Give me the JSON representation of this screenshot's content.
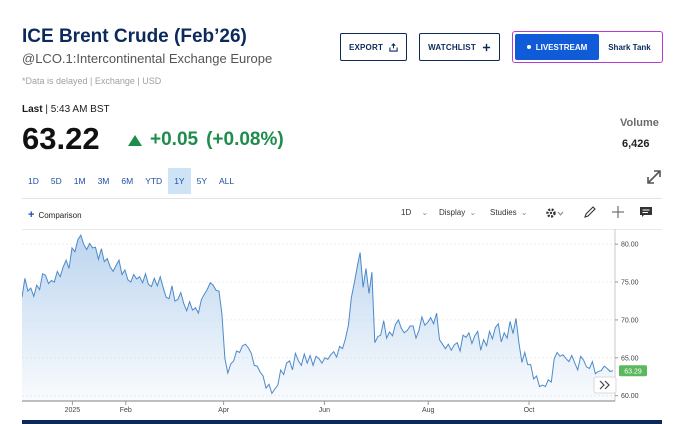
{
  "header": {
    "title": "ICE Brent Crude (Feb’26)",
    "symbol": "@LCO.1:Intercontinental Exchange Europe",
    "note": "*Data is delayed | Exchange | USD"
  },
  "actions": {
    "export_label": "EXPORT",
    "watchlist_label": "WATCHLIST",
    "livestream_label": "LIVESTREAM",
    "shark_label": "Shark Tank"
  },
  "quote": {
    "last_label": "Last",
    "last_time": "5:43 AM BST",
    "price": "63.22",
    "change": "+0.05",
    "change_pct": "(+0.08%)",
    "change_color": "#1e8d4b",
    "volume_label": "Volume",
    "volume": "6,426"
  },
  "ranges": {
    "items": [
      "1D",
      "5D",
      "1M",
      "3M",
      "6M",
      "YTD",
      "1Y",
      "5Y",
      "ALL"
    ],
    "active": "1Y"
  },
  "toolbar": {
    "comparison_label": "Comparison",
    "interval_label": "1D",
    "display_label": "Display",
    "studies_label": "Studies"
  },
  "chart_data": {
    "type": "area",
    "x_tick_labels": [
      "2025",
      "Feb",
      "Apr",
      "Jun",
      "Aug",
      "Oct"
    ],
    "y_ticks": [
      60,
      65,
      70,
      75,
      80
    ],
    "y_tick_labels": [
      "60.00",
      "65.00",
      "70.00",
      "75.00",
      "80.00"
    ],
    "ylim": [
      59.3,
      82.0
    ],
    "last_value_label": "63.29",
    "line_color": "#4d8ac9",
    "series": [
      {
        "values": [
          73.0,
          75.5,
          73.8,
          74.2,
          73.1,
          74.6,
          74.0,
          76.1,
          75.9,
          74.8,
          75.2,
          75.0,
          76.4,
          75.7,
          77.0,
          77.9,
          76.8,
          79.5,
          79.0,
          80.6,
          81.2,
          80.0,
          79.3,
          80.1,
          79.5,
          79.6,
          78.0,
          79.4,
          77.7,
          78.1,
          77.0,
          76.4,
          77.2,
          77.9,
          76.0,
          76.6,
          75.3,
          75.0,
          76.0,
          75.4,
          75.7,
          74.9,
          76.1,
          74.7,
          74.4,
          75.5,
          74.5,
          75.7,
          74.3,
          73.0,
          72.8,
          74.5,
          72.5,
          72.7,
          73.6,
          72.2,
          71.2,
          72.4,
          71.3,
          71.6,
          70.9,
          72.7,
          73.4,
          74.0,
          74.9,
          74.6,
          73.9,
          73.8,
          70.8,
          64.9,
          63.0,
          64.2,
          64.6,
          65.9,
          65.7,
          66.6,
          66.8,
          66.3,
          65.6,
          64.0,
          63.9,
          63.1,
          62.6,
          61.0,
          61.5,
          60.3,
          60.9,
          61.4,
          63.4,
          62.8,
          64.3,
          64.6,
          63.4,
          65.6,
          64.6,
          64.0,
          65.5,
          64.3,
          65.3,
          64.0,
          65.2,
          64.9,
          64.3,
          65.0,
          64.8,
          65.4,
          65.8,
          65.1,
          66.5,
          66.2,
          67.5,
          69.3,
          72.9,
          74.9,
          77.0,
          78.9,
          74.3,
          76.8,
          73.5,
          76.3,
          67.0,
          67.8,
          68.0,
          69.9,
          67.6,
          68.4,
          67.9,
          69.4,
          70.0,
          68.9,
          68.3,
          68.6,
          69.2,
          69.2,
          67.6,
          68.6,
          70.4,
          69.3,
          69.7,
          70.3,
          69.5,
          70.9,
          67.4,
          66.8,
          66.2,
          66.8,
          66.0,
          66.7,
          67.0,
          65.9,
          68.0,
          67.7,
          68.3,
          66.9,
          67.9,
          68.5,
          66.0,
          67.4,
          66.6,
          68.5,
          67.5,
          69.0,
          69.5,
          67.1,
          68.3,
          67.6,
          69.8,
          68.2,
          70.2,
          67.0,
          64.4,
          65.7,
          64.1,
          64.1,
          62.2,
          62.6,
          61.2,
          61.4,
          61.2,
          62.1,
          61.8,
          64.9,
          65.7,
          65.2,
          65.4,
          64.9,
          64.5,
          65.3,
          64.3,
          63.4,
          65.2,
          64.7,
          63.8,
          63.6,
          64.5,
          62.9,
          63.2,
          63.3,
          63.9,
          63.6,
          63.2,
          63.29
        ]
      }
    ]
  }
}
